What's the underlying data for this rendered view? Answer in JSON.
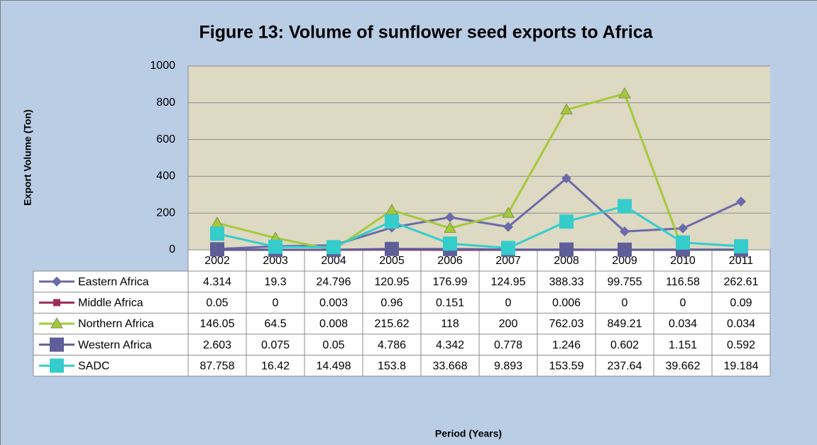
{
  "chart_data": {
    "type": "line",
    "title": "Figure 13: Volume of sunflower seed exports to Africa",
    "y_label": "Export Volume (Ton)",
    "x_label": "Period (Years)",
    "categories": [
      "2002",
      "2003",
      "2004",
      "2005",
      "2006",
      "2007",
      "2008",
      "2009",
      "2010",
      "2011"
    ],
    "ylim": [
      0,
      1000
    ],
    "yticks": [
      0,
      200,
      400,
      600,
      800,
      1000
    ],
    "grid": true,
    "series": [
      {
        "name": "Eastern Africa",
        "color": "#6b6ba8",
        "marker": "diamond",
        "values": [
          4.314,
          19.3,
          24.796,
          120.95,
          176.99,
          124.95,
          388.33,
          99.755,
          116.58,
          262.61
        ]
      },
      {
        "name": "Middle Africa",
        "color": "#9b2d5a",
        "marker": "square",
        "values": [
          0.05,
          0,
          0.003,
          0.96,
          0.151,
          0,
          0.006,
          0,
          0,
          0.09
        ]
      },
      {
        "name": "Northern Africa",
        "color": "#a3c93a",
        "marker": "triangle",
        "values": [
          146.05,
          64.5,
          0.008,
          215.62,
          118,
          200,
          762.03,
          849.21,
          0.034,
          0.034
        ]
      },
      {
        "name": "Western Africa",
        "color": "#5e5e98",
        "marker": "bigsquare",
        "values": [
          2.603,
          0.075,
          0.05,
          4.786,
          4.342,
          0.778,
          1.246,
          0.602,
          1.151,
          0.592
        ]
      },
      {
        "name": "SADC",
        "color": "#35cccc",
        "marker": "bigsquare",
        "values": [
          87.758,
          16.42,
          14.498,
          153.8,
          33.668,
          9.893,
          153.59,
          237.64,
          39.662,
          19.184
        ]
      }
    ]
  }
}
